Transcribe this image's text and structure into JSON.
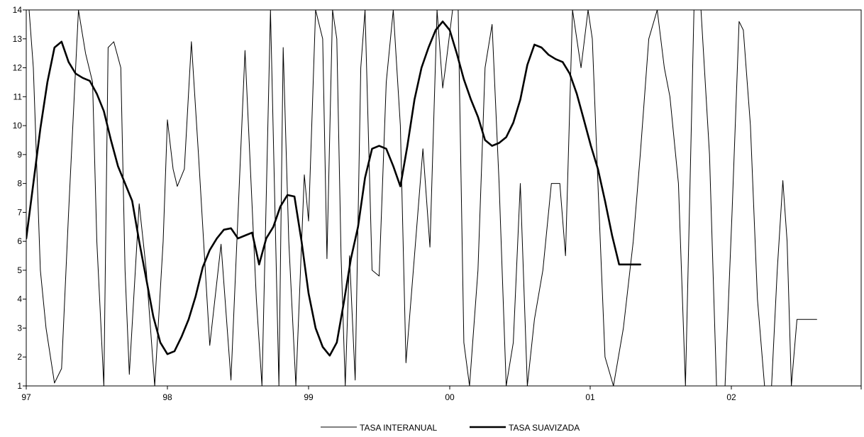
{
  "chart_data": {
    "type": "line",
    "x_tick_labels": [
      "97",
      "98",
      "99",
      "00",
      "01",
      "02"
    ],
    "x_ticks": [
      0,
      1,
      2,
      3,
      4,
      5
    ],
    "xlim": [
      0,
      6
    ],
    "ylim": [
      1,
      14
    ],
    "y_ticks": [
      1,
      2,
      3,
      4,
      5,
      6,
      7,
      8,
      9,
      10,
      11,
      12,
      13,
      14
    ],
    "y_tick_labels": [
      "1",
      "2",
      "3",
      "4",
      "5",
      "6",
      "7",
      "8",
      "9",
      "10",
      "11",
      "12",
      "13",
      "14"
    ],
    "grid": false,
    "legend_position": "bottom-center",
    "series": [
      {
        "name": "TASA INTERANUAL",
        "style": "thin",
        "color": "#000000",
        "x": [
          0.02,
          0.05,
          0.1,
          0.14,
          0.2,
          0.25,
          0.3,
          0.37,
          0.42,
          0.47,
          0.5,
          0.55,
          0.58,
          0.62,
          0.67,
          0.7,
          0.73,
          0.8,
          0.85,
          0.91,
          0.97,
          1.0,
          1.04,
          1.07,
          1.12,
          1.17,
          1.22,
          1.3,
          1.38,
          1.45,
          1.55,
          1.63,
          1.67,
          1.73,
          1.79,
          1.82,
          1.86,
          1.91,
          1.97,
          2.0,
          2.05,
          2.1,
          2.13,
          2.17,
          2.2,
          2.23,
          2.26,
          2.29,
          2.33,
          2.37,
          2.4,
          2.45,
          2.5,
          2.55,
          2.6,
          2.65,
          2.69,
          2.75,
          2.81,
          2.86,
          2.91,
          2.95,
          2.97,
          3.02,
          3.06,
          3.1,
          3.14,
          3.2,
          3.25,
          3.3,
          3.35,
          3.4,
          3.45,
          3.5,
          3.55,
          3.6,
          3.66,
          3.72,
          3.78,
          3.82,
          3.87,
          3.93,
          3.98,
          4.01,
          4.05,
          4.1,
          4.16,
          4.23,
          4.3,
          4.35,
          4.41,
          4.47,
          4.52,
          4.56,
          4.62,
          4.67,
          4.73,
          4.78,
          4.84,
          4.89,
          4.95,
          5.0,
          5.05,
          5.08,
          5.13,
          5.18,
          5.23,
          5.28,
          5.32,
          5.36,
          5.39,
          5.42,
          5.46,
          5.5,
          5.58,
          5.6
        ],
        "values": [
          14.0,
          12.0,
          5.0,
          3.0,
          1.1,
          1.6,
          7.0,
          14.0,
          12.5,
          11.5,
          6.0,
          1.0,
          12.7,
          12.9,
          12.0,
          5.0,
          1.4,
          7.3,
          5.0,
          1.0,
          6.0,
          10.2,
          8.5,
          7.9,
          8.5,
          12.9,
          9.0,
          2.4,
          5.9,
          1.2,
          12.6,
          4.0,
          1.0,
          14.0,
          1.0,
          12.7,
          6.0,
          1.0,
          8.3,
          6.7,
          14.0,
          13.0,
          5.4,
          14.0,
          13.0,
          5.5,
          1.0,
          5.5,
          1.2,
          12.0,
          14.0,
          5.0,
          4.8,
          11.5,
          14.0,
          10.0,
          1.8,
          5.5,
          9.2,
          5.8,
          14.0,
          11.3,
          12.0,
          14.0,
          14.0,
          2.5,
          1.0,
          5.0,
          12.0,
          13.5,
          8.0,
          1.0,
          2.5,
          8.0,
          1.0,
          3.3,
          5.0,
          8.0,
          8.0,
          5.5,
          14.0,
          12.0,
          14.0,
          13.0,
          8.0,
          2.0,
          1.0,
          3.0,
          6.0,
          9.0,
          13.0,
          14.0,
          12.0,
          11.0,
          8.0,
          1.0,
          14.0,
          14.0,
          9.0,
          1.0,
          1.0,
          7.0,
          13.6,
          13.3,
          10.0,
          4.0,
          1.0,
          1.0,
          5.0,
          8.1,
          6.0,
          1.0,
          3.3,
          3.3,
          3.3,
          3.3
        ]
      },
      {
        "name": "TASA SUAVIZADA",
        "style": "thick",
        "color": "#000000",
        "x": [
          0.0,
          0.05,
          0.1,
          0.15,
          0.2,
          0.25,
          0.3,
          0.35,
          0.4,
          0.45,
          0.5,
          0.55,
          0.6,
          0.65,
          0.7,
          0.75,
          0.8,
          0.85,
          0.9,
          0.95,
          1.0,
          1.05,
          1.1,
          1.15,
          1.2,
          1.25,
          1.3,
          1.35,
          1.4,
          1.45,
          1.5,
          1.55,
          1.6,
          1.65,
          1.7,
          1.75,
          1.8,
          1.85,
          1.9,
          1.95,
          2.0,
          2.05,
          2.1,
          2.15,
          2.2,
          2.25,
          2.3,
          2.35,
          2.4,
          2.45,
          2.5,
          2.55,
          2.6,
          2.65,
          2.7,
          2.75,
          2.8,
          2.85,
          2.9,
          2.95,
          3.0,
          3.05,
          3.1,
          3.15,
          3.2,
          3.25,
          3.3,
          3.35,
          3.4,
          3.45,
          3.5,
          3.55,
          3.6,
          3.65,
          3.7,
          3.75,
          3.8,
          3.85,
          3.9,
          3.95,
          4.0,
          4.05,
          4.1,
          4.15,
          4.2,
          4.25,
          4.3,
          4.35,
          4.4,
          4.45,
          4.5,
          4.55,
          4.6,
          4.65,
          4.7,
          4.75,
          4.8,
          4.85,
          4.9,
          4.95,
          5.0,
          5.05,
          5.1,
          5.15,
          5.2,
          5.25,
          5.3,
          5.35
        ],
        "values": [
          6.1,
          8.0,
          9.9,
          11.5,
          12.7,
          12.9,
          12.2,
          11.8,
          11.65,
          11.55,
          11.1,
          10.5,
          9.5,
          8.6,
          8.0,
          7.4,
          6.0,
          4.7,
          3.4,
          2.5,
          2.1,
          2.2,
          2.7,
          3.3,
          4.1,
          5.1,
          5.7,
          6.1,
          6.4,
          6.45,
          6.1,
          6.2,
          6.3,
          5.2,
          6.1,
          6.5,
          7.2,
          7.6,
          7.55,
          6.0,
          4.2,
          3.0,
          2.35,
          2.05,
          2.5,
          3.9,
          5.4,
          6.5,
          8.2,
          9.2,
          9.3,
          9.2,
          8.6,
          7.9,
          9.3,
          10.9,
          12.0,
          12.7,
          13.3,
          13.6,
          13.3,
          12.5,
          11.6,
          10.9,
          10.3,
          9.5,
          9.3,
          9.4,
          9.6,
          10.1,
          10.9,
          12.1,
          12.8,
          12.7,
          12.45,
          12.3,
          12.2,
          11.8,
          11.1,
          10.2,
          9.3,
          8.5,
          7.4,
          6.2,
          5.2,
          5.2,
          5.2,
          5.2,
          5.2,
          5.2,
          5.2,
          5.2,
          5.2,
          5.2,
          5.2,
          5.2,
          5.2,
          5.2,
          5.2,
          5.2,
          5.2,
          5.2,
          5.2,
          5.2,
          5.2,
          5.2,
          5.2,
          5.2
        ]
      }
    ]
  }
}
